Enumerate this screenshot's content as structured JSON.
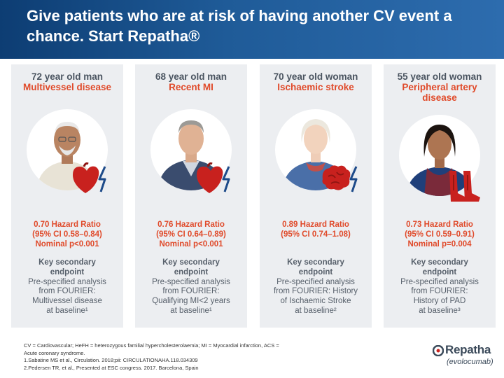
{
  "header": {
    "title": "Give patients who are at risk of having another CV event a chance. Start Repatha®"
  },
  "cards": [
    {
      "age": "72 year old man",
      "condition": "Multivessel disease",
      "stats": [
        "0.70 Hazard Ratio",
        "(95% CI 0.58–0.84)",
        "Nominal p<0.001"
      ],
      "endpoint_title": [
        "Key secondary",
        "endpoint"
      ],
      "endpoint_body": [
        "Pre-specified analysis",
        "from FOURIER:",
        "Multivessel disease",
        "at baseline¹"
      ],
      "organ_icon": "heart-icon"
    },
    {
      "age": "68 year old man",
      "condition": "Recent MI",
      "stats": [
        "0.76 Hazard Ratio",
        "(95% CI 0.64–0.89)",
        "Nominal p<0.001"
      ],
      "endpoint_title": [
        "Key secondary",
        "endpoint"
      ],
      "endpoint_body": [
        "Pre-specified analysis",
        "from FOURIER:",
        "Qualifying MI<2 years",
        "at baseline¹"
      ],
      "organ_icon": "heart-icon"
    },
    {
      "age": "70 year old woman",
      "condition": "Ischaemic stroke",
      "stats": [
        "0.89 Hazard Ratio",
        "(95% CI 0.74–1.08)"
      ],
      "endpoint_title": [
        "Key secondary",
        "endpoint"
      ],
      "endpoint_body": [
        "Pre-specified analysis",
        "from FOURIER: History",
        "of Ischaemic Stroke",
        "at baseline²"
      ],
      "organ_icon": "brain-icon"
    },
    {
      "age": "55 year old woman",
      "condition": "Peripheral artery disease",
      "stats": [
        "0.73 Hazard Ratio",
        "(95% CI 0.59–0.91)",
        "Nominal p=0.004"
      ],
      "endpoint_title": [
        "Key secondary",
        "endpoint"
      ],
      "endpoint_body": [
        "Pre-specified analysis",
        "from FOURIER:",
        "History of PAD",
        "at baseline³"
      ],
      "organ_icon": "legs-icon"
    }
  ],
  "footer": {
    "lines": [
      "CV = Cardiovascular; HeFH = heterozygous familial hypercholesterolaemia; MI = Myocardial infarction, ACS =",
      "Acute coronary syndrome.",
      "1.Sabatine MS et al., Circulation. 2018;pii: CIRCULATIONAHA.118.034309",
      "2.Pedersen TR, et al., Presented at ESC congress. 2017. Barcelona, Spain"
    ]
  },
  "logo": {
    "brand": "Repatha",
    "sub": "(evolocumab)"
  },
  "colors": {
    "accent": "#e04a2a",
    "header": "#1f5b98",
    "panel": "#eceef1"
  }
}
